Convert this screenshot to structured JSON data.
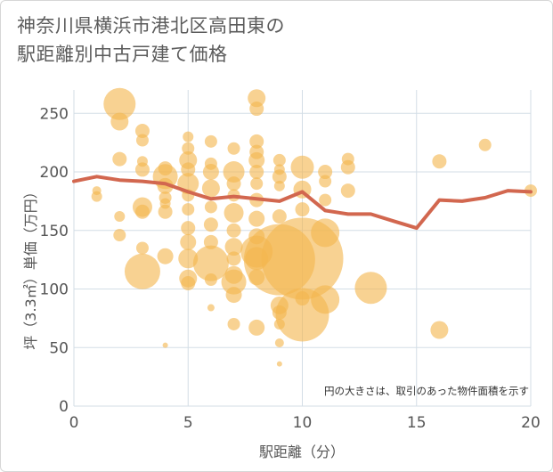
{
  "title_line1": "神奈川県横浜市港北区高田東の",
  "title_line2": "駅距離別中古戸建て価格",
  "chart_data": {
    "type": "scatter",
    "xlabel": "駅距離（分）",
    "ylabel": "坪（3.3㎡）単価（万円）",
    "xlim": [
      0,
      20
    ],
    "ylim": [
      0,
      270
    ],
    "x_ticks": [
      0,
      5,
      10,
      15,
      20
    ],
    "y_ticks": [
      0,
      50,
      100,
      150,
      200,
      250
    ],
    "grid": true,
    "annotation": "円の大きさは、取引のあった物件面積を示す",
    "colors": {
      "bubble": "#f3b64f",
      "line": "#d2674f",
      "grid": "#d3dde6"
    },
    "bubbles": [
      {
        "x": 2,
        "y": 258,
        "s": 18
      },
      {
        "x": 2,
        "y": 243,
        "s": 10
      },
      {
        "x": 2,
        "y": 211,
        "s": 8
      },
      {
        "x": 2,
        "y": 162,
        "s": 6
      },
      {
        "x": 2,
        "y": 146,
        "s": 7
      },
      {
        "x": 1,
        "y": 184,
        "s": 5
      },
      {
        "x": 1,
        "y": 179,
        "s": 6
      },
      {
        "x": 3,
        "y": 235,
        "s": 8
      },
      {
        "x": 3,
        "y": 227,
        "s": 7
      },
      {
        "x": 3,
        "y": 209,
        "s": 6
      },
      {
        "x": 3,
        "y": 202,
        "s": 8
      },
      {
        "x": 3,
        "y": 170,
        "s": 11
      },
      {
        "x": 3,
        "y": 166,
        "s": 8
      },
      {
        "x": 3,
        "y": 135,
        "s": 7
      },
      {
        "x": 3,
        "y": 115,
        "s": 20
      },
      {
        "x": 4,
        "y": 203,
        "s": 8
      },
      {
        "x": 4,
        "y": 196,
        "s": 14
      },
      {
        "x": 4,
        "y": 188,
        "s": 9
      },
      {
        "x": 4,
        "y": 178,
        "s": 7
      },
      {
        "x": 4,
        "y": 173,
        "s": 6
      },
      {
        "x": 4,
        "y": 166,
        "s": 8
      },
      {
        "x": 4,
        "y": 128,
        "s": 9
      },
      {
        "x": 4,
        "y": 52,
        "s": 3
      },
      {
        "x": 5,
        "y": 230,
        "s": 6
      },
      {
        "x": 5,
        "y": 220,
        "s": 7
      },
      {
        "x": 5,
        "y": 210,
        "s": 10
      },
      {
        "x": 5,
        "y": 202,
        "s": 8
      },
      {
        "x": 5,
        "y": 190,
        "s": 12
      },
      {
        "x": 5,
        "y": 180,
        "s": 7
      },
      {
        "x": 5,
        "y": 168,
        "s": 7
      },
      {
        "x": 5,
        "y": 152,
        "s": 8
      },
      {
        "x": 5,
        "y": 140,
        "s": 9
      },
      {
        "x": 5,
        "y": 126,
        "s": 11
      },
      {
        "x": 5,
        "y": 109,
        "s": 10
      },
      {
        "x": 5,
        "y": 105,
        "s": 8
      },
      {
        "x": 6,
        "y": 226,
        "s": 7
      },
      {
        "x": 6,
        "y": 207,
        "s": 7
      },
      {
        "x": 6,
        "y": 200,
        "s": 9
      },
      {
        "x": 6,
        "y": 186,
        "s": 10
      },
      {
        "x": 6,
        "y": 170,
        "s": 7
      },
      {
        "x": 6,
        "y": 155,
        "s": 8
      },
      {
        "x": 6,
        "y": 140,
        "s": 8
      },
      {
        "x": 6,
        "y": 122,
        "s": 20
      },
      {
        "x": 6,
        "y": 108,
        "s": 7
      },
      {
        "x": 6,
        "y": 84,
        "s": 4
      },
      {
        "x": 7,
        "y": 220,
        "s": 7
      },
      {
        "x": 7,
        "y": 200,
        "s": 12
      },
      {
        "x": 7,
        "y": 190,
        "s": 8
      },
      {
        "x": 7,
        "y": 180,
        "s": 7
      },
      {
        "x": 7,
        "y": 165,
        "s": 11
      },
      {
        "x": 7,
        "y": 150,
        "s": 8
      },
      {
        "x": 7,
        "y": 136,
        "s": 10
      },
      {
        "x": 7,
        "y": 126,
        "s": 8
      },
      {
        "x": 7,
        "y": 112,
        "s": 10
      },
      {
        "x": 7,
        "y": 106,
        "s": 14
      },
      {
        "x": 7,
        "y": 95,
        "s": 9
      },
      {
        "x": 7,
        "y": 70,
        "s": 7
      },
      {
        "x": 8,
        "y": 263,
        "s": 10
      },
      {
        "x": 8,
        "y": 254,
        "s": 8
      },
      {
        "x": 8,
        "y": 226,
        "s": 8
      },
      {
        "x": 8,
        "y": 217,
        "s": 8
      },
      {
        "x": 8,
        "y": 210,
        "s": 9
      },
      {
        "x": 8,
        "y": 200,
        "s": 8
      },
      {
        "x": 8,
        "y": 190,
        "s": 7
      },
      {
        "x": 8,
        "y": 176,
        "s": 8
      },
      {
        "x": 8,
        "y": 160,
        "s": 9
      },
      {
        "x": 8,
        "y": 145,
        "s": 9
      },
      {
        "x": 8,
        "y": 132,
        "s": 18
      },
      {
        "x": 8,
        "y": 126,
        "s": 13
      },
      {
        "x": 8,
        "y": 110,
        "s": 9
      },
      {
        "x": 8,
        "y": 67,
        "s": 9
      },
      {
        "x": 9,
        "y": 210,
        "s": 7
      },
      {
        "x": 9,
        "y": 202,
        "s": 6
      },
      {
        "x": 9,
        "y": 196,
        "s": 8
      },
      {
        "x": 9,
        "y": 188,
        "s": 6
      },
      {
        "x": 9,
        "y": 162,
        "s": 8
      },
      {
        "x": 9,
        "y": 125,
        "s": 40
      },
      {
        "x": 9,
        "y": 86,
        "s": 10
      },
      {
        "x": 9,
        "y": 80,
        "s": 8
      },
      {
        "x": 9,
        "y": 70,
        "s": 6
      },
      {
        "x": 9,
        "y": 54,
        "s": 5
      },
      {
        "x": 9,
        "y": 36,
        "s": 3
      },
      {
        "x": 10,
        "y": 204,
        "s": 13
      },
      {
        "x": 10,
        "y": 185,
        "s": 10
      },
      {
        "x": 10,
        "y": 168,
        "s": 8
      },
      {
        "x": 10,
        "y": 126,
        "s": 46
      },
      {
        "x": 10,
        "y": 92,
        "s": 8
      },
      {
        "x": 10,
        "y": 78,
        "s": 30
      },
      {
        "x": 11,
        "y": 200,
        "s": 8
      },
      {
        "x": 11,
        "y": 192,
        "s": 7
      },
      {
        "x": 11,
        "y": 176,
        "s": 7
      },
      {
        "x": 11,
        "y": 148,
        "s": 16
      },
      {
        "x": 11,
        "y": 91,
        "s": 16
      },
      {
        "x": 12,
        "y": 211,
        "s": 7
      },
      {
        "x": 12,
        "y": 204,
        "s": 8
      },
      {
        "x": 12,
        "y": 184,
        "s": 8
      },
      {
        "x": 13,
        "y": 101,
        "s": 18
      },
      {
        "x": 16,
        "y": 209,
        "s": 8
      },
      {
        "x": 16,
        "y": 65,
        "s": 10
      },
      {
        "x": 18,
        "y": 223,
        "s": 7
      },
      {
        "x": 20,
        "y": 184,
        "s": 7
      }
    ],
    "series": [
      {
        "x": [
          0,
          1,
          2,
          3,
          4,
          5,
          6,
          7,
          8,
          9,
          10,
          11,
          12,
          13,
          14,
          15,
          16,
          17,
          18,
          19,
          20
        ],
        "values": [
          192,
          196,
          193,
          192,
          190,
          183,
          177,
          179,
          177,
          175,
          183,
          167,
          164,
          164,
          158,
          152,
          176,
          175,
          178,
          184,
          183
        ]
      }
    ]
  }
}
